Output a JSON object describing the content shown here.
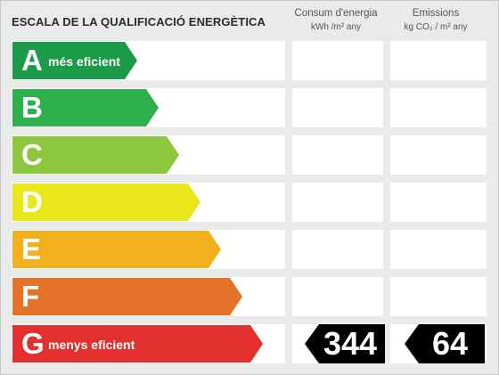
{
  "header": {
    "title": "ESCALA DE LA QUALIFICACIÓ ENERGÈTICA",
    "consum_label": "Consum d'energia",
    "consum_unit": "kWh /m² any",
    "emissions_label": "Emissions",
    "emissions_unit": "kg CO₂ / m² any"
  },
  "ratings": [
    {
      "letter": "A",
      "text": "més eficient",
      "color": "#1b9a48"
    },
    {
      "letter": "B",
      "text": "",
      "color": "#2eb04c"
    },
    {
      "letter": "C",
      "text": "",
      "color": "#8dc63f"
    },
    {
      "letter": "D",
      "text": "",
      "color": "#e9e71a"
    },
    {
      "letter": "E",
      "text": "",
      "color": "#f2b11c"
    },
    {
      "letter": "F",
      "text": "",
      "color": "#e47229"
    },
    {
      "letter": "G",
      "text": "menys eficient",
      "color": "#e3302e"
    }
  ],
  "result": {
    "rating": "G",
    "consum_value": "344",
    "emissions_value": "64",
    "badge_color": "#000000"
  }
}
